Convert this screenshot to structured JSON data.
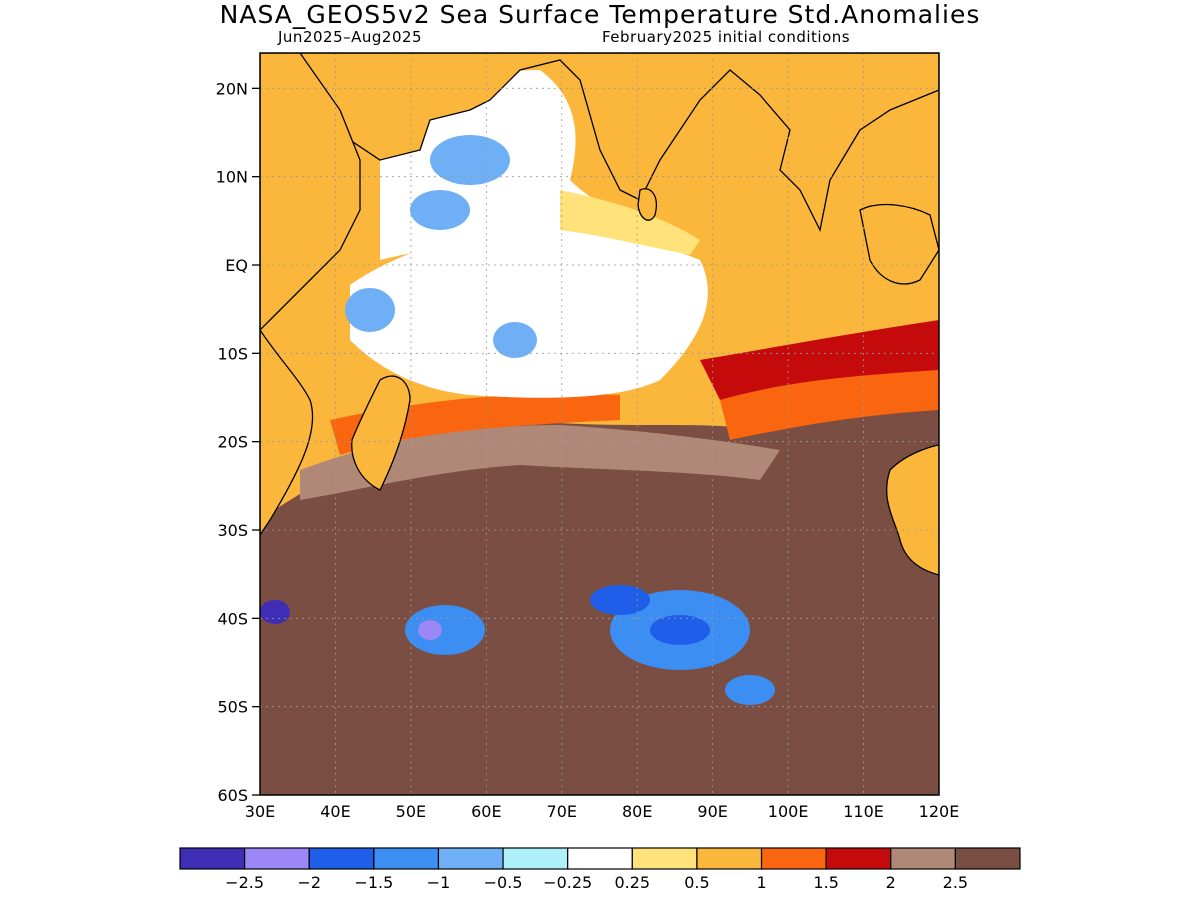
{
  "title": "NASA_GEOS5v2 Sea Surface Temperature Std.Anomalies",
  "subtitle_left": "Jun2025–Aug2025",
  "subtitle_right": "February2025 initial conditions",
  "map": {
    "lon_range": [
      30,
      120
    ],
    "lat_range": [
      -60,
      24
    ],
    "lat_labels": [
      "20N",
      "10N",
      "EQ",
      "10S",
      "20S",
      "30S",
      "40S",
      "50S",
      "60S"
    ],
    "lat_values": [
      20,
      10,
      0,
      -10,
      -20,
      -30,
      -40,
      -50,
      -60
    ],
    "lon_labels": [
      "30E",
      "40E",
      "50E",
      "60E",
      "70E",
      "80E",
      "90E",
      "100E",
      "110E",
      "120E"
    ],
    "lon_values": [
      30,
      40,
      50,
      60,
      70,
      80,
      90,
      100,
      110,
      120
    ],
    "land_color": "#fbb73b",
    "grid": true
  },
  "colorbar": {
    "colors": [
      "#3f2db6",
      "#9b87f6",
      "#1e5ee8",
      "#3c8ef2",
      "#6faff5",
      "#adf0fa",
      "#ffffff",
      "#ffe37a",
      "#fbb73b",
      "#fa6610",
      "#c40a0a",
      "#b08878",
      "#7a4e42"
    ],
    "labels": [
      "−2.5",
      "−2",
      "−1.5",
      "−1",
      "−0.5",
      "−0.25",
      "0.25",
      "0.5",
      "1",
      "1.5",
      "2",
      "2.5"
    ]
  }
}
